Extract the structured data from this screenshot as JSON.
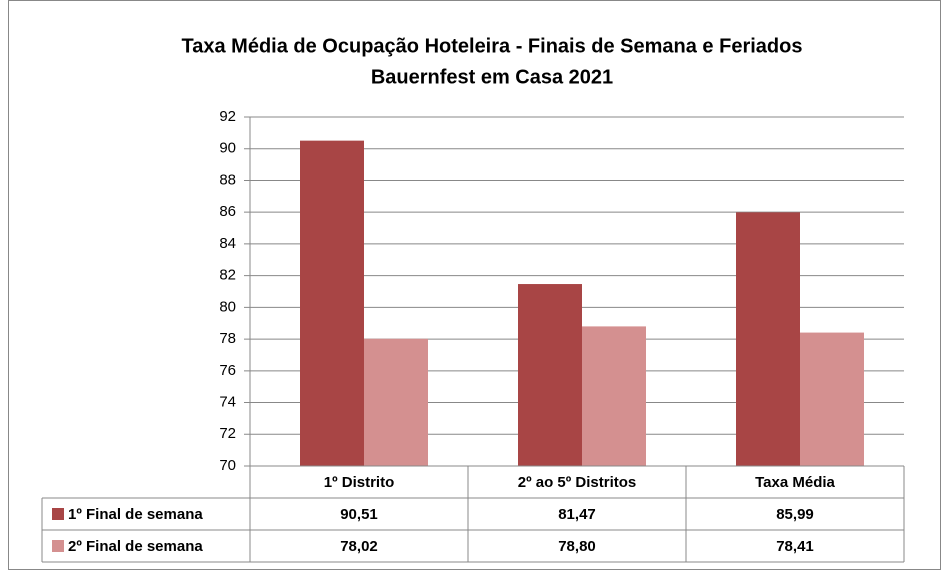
{
  "chart_data": {
    "type": "bar",
    "title": "Taxa Média de Ocupação Hoteleira - Finais de Semana e Feriados",
    "subtitle": "Bauernfest em Casa 2021",
    "categories": [
      "1º Distrito",
      "2º ao 5º Distritos",
      "Taxa Média"
    ],
    "series": [
      {
        "name": "1º Final de semana",
        "color": "#a84545",
        "values": [
          90.51,
          81.47,
          85.99
        ],
        "value_labels": [
          "90,51",
          "81,47",
          "85,99"
        ]
      },
      {
        "name": "2º Final de semana",
        "color": "#d49090",
        "values": [
          78.02,
          78.8,
          78.41
        ],
        "value_labels": [
          "78,02",
          "78,80",
          "78,41"
        ]
      }
    ],
    "ylim": [
      70,
      92
    ],
    "yticks": [
      70,
      72,
      74,
      76,
      78,
      80,
      82,
      84,
      86,
      88,
      90,
      92
    ],
    "grid": true
  }
}
